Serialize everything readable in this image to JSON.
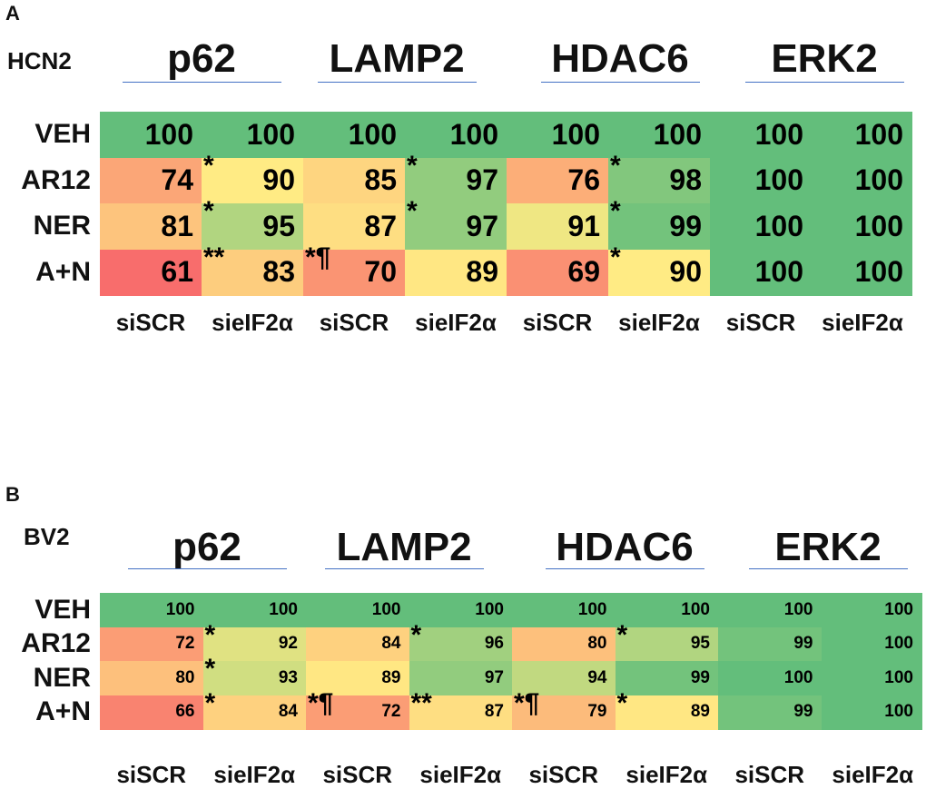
{
  "chart_data": [
    {
      "type": "heatmap",
      "panel": "A",
      "cell_line": "HCN2",
      "targets": [
        "p62",
        "LAMP2",
        "HDAC6",
        "ERK2"
      ],
      "rows": [
        "VEH",
        "AR12",
        "NER",
        "A+N"
      ],
      "columns": [
        "siSCR",
        "sieIF2α",
        "siSCR",
        "sieIF2α",
        "siSCR",
        "sieIF2α",
        "siSCR",
        "sieIF2α"
      ],
      "values": [
        [
          100,
          100,
          100,
          100,
          100,
          100,
          100,
          100
        ],
        [
          74,
          90,
          85,
          97,
          76,
          98,
          100,
          100
        ],
        [
          81,
          95,
          87,
          97,
          91,
          99,
          100,
          100
        ],
        [
          61,
          83,
          70,
          89,
          69,
          90,
          100,
          100
        ]
      ],
      "markers": [
        {
          "row": 1,
          "col": 1,
          "text": "*"
        },
        {
          "row": 1,
          "col": 3,
          "text": "*"
        },
        {
          "row": 1,
          "col": 5,
          "text": "*"
        },
        {
          "row": 2,
          "col": 1,
          "text": "*"
        },
        {
          "row": 2,
          "col": 3,
          "text": "*"
        },
        {
          "row": 2,
          "col": 5,
          "text": "*"
        },
        {
          "row": 3,
          "col": 1,
          "text": "**"
        },
        {
          "row": 3,
          "col": 2,
          "text": "*¶"
        },
        {
          "row": 3,
          "col": 5,
          "text": "*"
        }
      ],
      "colors": {
        "low": "#F8696B",
        "mid": "#FFEB84",
        "high": "#63BE7B",
        "min": 60,
        "midpoint": 90,
        "max": 100
      }
    },
    {
      "type": "heatmap",
      "panel": "B",
      "cell_line": "BV2",
      "targets": [
        "p62",
        "LAMP2",
        "HDAC6",
        "ERK2"
      ],
      "rows": [
        "VEH",
        "AR12",
        "NER",
        "A+N"
      ],
      "columns": [
        "siSCR",
        "sieIF2α",
        "siSCR",
        "sieIF2α",
        "siSCR",
        "sieIF2α",
        "siSCR",
        "sieIF2α"
      ],
      "values": [
        [
          100,
          100,
          100,
          100,
          100,
          100,
          100,
          100
        ],
        [
          72,
          92,
          84,
          96,
          80,
          95,
          99,
          100
        ],
        [
          80,
          93,
          89,
          97,
          94,
          99,
          100,
          100
        ],
        [
          66,
          84,
          72,
          87,
          79,
          89,
          99,
          100
        ]
      ],
      "markers": [
        {
          "row": 1,
          "col": 1,
          "text": "*"
        },
        {
          "row": 1,
          "col": 3,
          "text": "*"
        },
        {
          "row": 1,
          "col": 5,
          "text": "*"
        },
        {
          "row": 2,
          "col": 1,
          "text": "*"
        },
        {
          "row": 3,
          "col": 1,
          "text": "*"
        },
        {
          "row": 3,
          "col": 2,
          "text": "*¶"
        },
        {
          "row": 3,
          "col": 3,
          "text": "**"
        },
        {
          "row": 3,
          "col": 4,
          "text": "*¶"
        },
        {
          "row": 3,
          "col": 5,
          "text": "*"
        }
      ],
      "colors": {
        "low": "#F8696B",
        "mid": "#FFEB84",
        "high": "#63BE7B",
        "min": 60,
        "midpoint": 90,
        "max": 100
      }
    }
  ]
}
